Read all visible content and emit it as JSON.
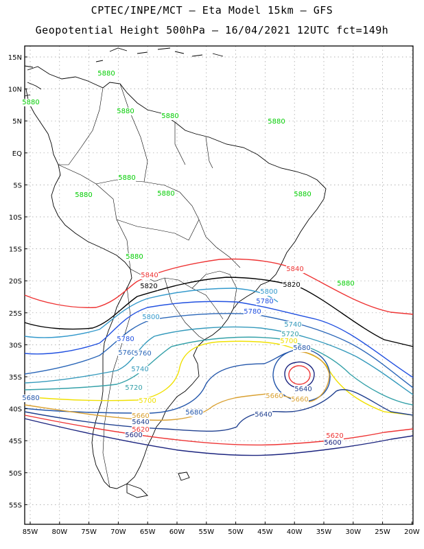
{
  "header": {
    "line1": "CPTEC/INPE/MCT –  Eta Model 15km – GFS",
    "line2": "Geopotential Height 500hPa – 16/04/2021 12UTC fct=149h"
  },
  "axes": {
    "lat_ticks": [
      "15N",
      "10N",
      "5N",
      "EQ",
      "5S",
      "10S",
      "15S",
      "20S",
      "25S",
      "30S",
      "35S",
      "40S",
      "45S",
      "50S",
      "55S"
    ],
    "lon_ticks": [
      "85W",
      "80W",
      "75W",
      "70W",
      "65W",
      "60W",
      "55W",
      "50W",
      "45W",
      "40W",
      "35W",
      "30W",
      "25W",
      "20W"
    ]
  },
  "colors": {
    "c5880": "#00cc00",
    "c5840": "#ee3333",
    "c5820": "#000000",
    "c5800": "#3399cc",
    "c5780": "#1f4fe0",
    "c5760": "#2a66b8",
    "c5740": "#3399bb",
    "c5720": "#33a0a8",
    "c5700": "#f0e000",
    "c5680": "#2255aa",
    "c5660": "#d9a030",
    "c5640": "#1f3f8f",
    "c5620": "#ee3333",
    "c5600": "#1a237e"
  },
  "contour_labels": [
    {
      "text": "5880",
      "color": "c5880"
    },
    {
      "text": "5880",
      "color": "c5880"
    },
    {
      "text": "5880",
      "color": "c5880"
    },
    {
      "text": "5880",
      "color": "c5880"
    },
    {
      "text": "5880",
      "color": "c5880"
    },
    {
      "text": "5880",
      "color": "c5880"
    },
    {
      "text": "5880",
      "color": "c5880"
    },
    {
      "text": "5880",
      "color": "c5880"
    },
    {
      "text": "5880",
      "color": "c5880"
    },
    {
      "text": "5880",
      "color": "c5880"
    },
    {
      "text": "5880",
      "color": "c5880"
    },
    {
      "text": "5840",
      "color": "c5840"
    },
    {
      "text": "5840",
      "color": "c5840"
    },
    {
      "text": "5820",
      "color": "c5820"
    },
    {
      "text": "5820",
      "color": "c5820"
    },
    {
      "text": "5800",
      "color": "c5800"
    },
    {
      "text": "5800",
      "color": "c5800"
    },
    {
      "text": "5780",
      "color": "c5780"
    },
    {
      "text": "5780",
      "color": "c5780"
    },
    {
      "text": "5780",
      "color": "c5780"
    },
    {
      "text": "5760",
      "color": "c5760"
    },
    {
      "text": "5760",
      "color": "c5760"
    },
    {
      "text": "5740",
      "color": "c5740"
    },
    {
      "text": "5740",
      "color": "c5740"
    },
    {
      "text": "5720",
      "color": "c5720"
    },
    {
      "text": "5720",
      "color": "c5720"
    },
    {
      "text": "5700",
      "color": "c5700"
    },
    {
      "text": "5700",
      "color": "c5700"
    },
    {
      "text": "5680",
      "color": "c5680"
    },
    {
      "text": "5680",
      "color": "c5680"
    },
    {
      "text": "5680",
      "color": "c5680"
    },
    {
      "text": "5660",
      "color": "c5660"
    },
    {
      "text": "5660",
      "color": "c5660"
    },
    {
      "text": "5660",
      "color": "c5660"
    },
    {
      "text": "5640",
      "color": "c5640"
    },
    {
      "text": "5640",
      "color": "c5640"
    },
    {
      "text": "5640",
      "color": "c5640"
    },
    {
      "text": "5620",
      "color": "c5620"
    },
    {
      "text": "5620",
      "color": "c5620"
    },
    {
      "text": "5600",
      "color": "c5600"
    },
    {
      "text": "5600",
      "color": "c5600"
    }
  ]
}
